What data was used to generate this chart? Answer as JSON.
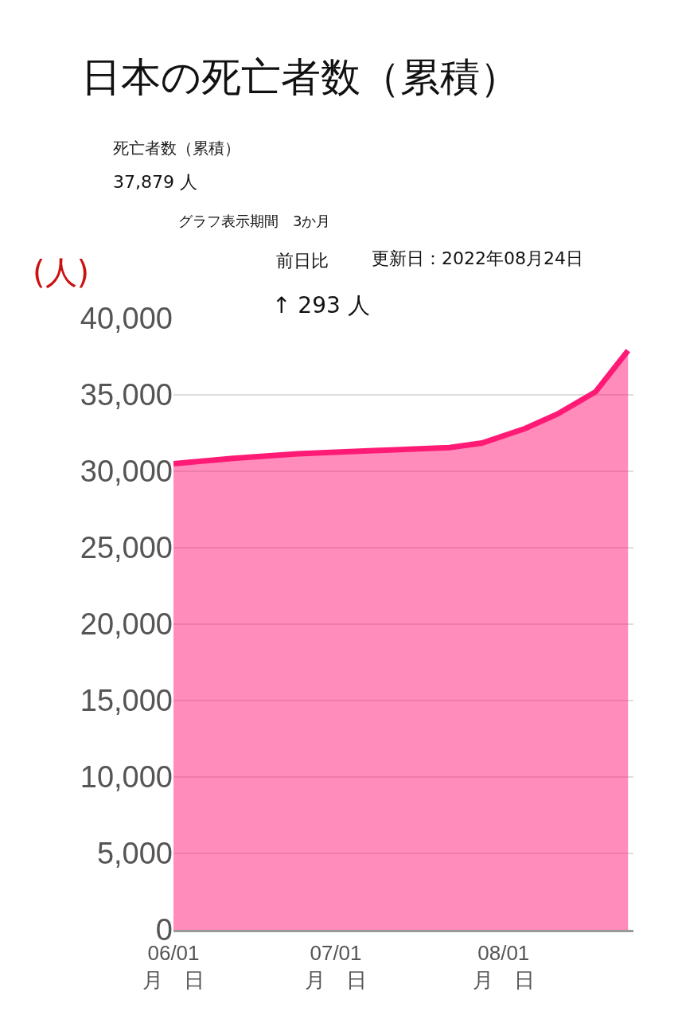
{
  "chart_data": {
    "type": "area",
    "title": "日本の死亡者数（累積）",
    "ylabel": "(人)",
    "annotations": [
      "死亡者数（累積）",
      "37,879 人",
      "グラフ表示期間　3か月",
      "前日比",
      "更新日：2022年08月24日",
      "↑ 293 人"
    ],
    "x": [
      "2022-06-01",
      "2022-06-12",
      "2022-06-24",
      "2022-07-08",
      "2022-07-22",
      "2022-07-28",
      "2022-08-05",
      "2022-08-11",
      "2022-08-18",
      "2022-08-24"
    ],
    "series": [
      {
        "color": "#ff1a75",
        "values": [
          30500,
          30850,
          31150,
          31350,
          31550,
          31850,
          32800,
          33750,
          35200,
          37900
        ]
      }
    ],
    "xlim": [
      "2022-06-01",
      "2022-08-25"
    ],
    "xticks": [
      {
        "value": "2022-06-01",
        "label": "06/01\n月　日"
      },
      {
        "value": "2022-07-01",
        "label": "07/01\n月　日"
      },
      {
        "value": "2022-08-01",
        "label": "08/01\n月　日"
      }
    ],
    "ylim": [
      0,
      40000
    ],
    "yticks": [
      {
        "value": 0,
        "label": "0"
      },
      {
        "value": 5000,
        "label": "5,000"
      },
      {
        "value": 10000,
        "label": "10,000"
      },
      {
        "value": 15000,
        "label": "15,000"
      },
      {
        "value": 20000,
        "label": "20,000"
      },
      {
        "value": 25000,
        "label": "25,000"
      },
      {
        "value": 30000,
        "label": "30,000"
      },
      {
        "value": 35000,
        "label": "35,000"
      },
      {
        "value": 40000,
        "label": "40,000"
      }
    ],
    "grid": "y",
    "marker": "none"
  }
}
